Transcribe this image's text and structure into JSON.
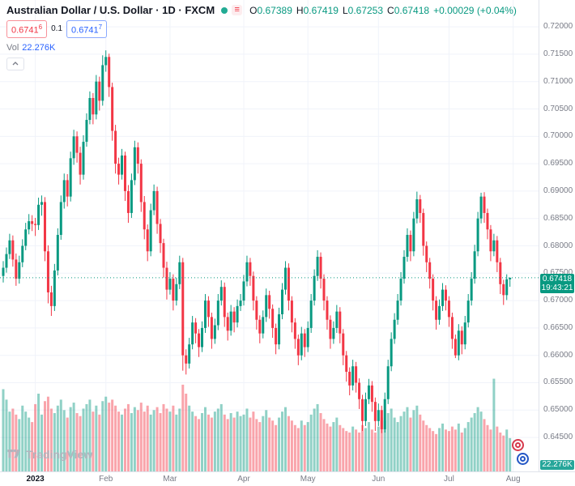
{
  "header": {
    "title": "Australian Dollar / U.S. Dollar · 1D · FXCM",
    "ohlc": {
      "o_label": "O",
      "o": "0.67389",
      "h_label": "H",
      "h": "0.67419",
      "l_label": "L",
      "l": "0.67253",
      "c_label": "C",
      "c": "0.67418",
      "change": "+0.00029 (+0.04%)"
    },
    "bid": {
      "main": "0.6741",
      "sup": "6"
    },
    "spread": "0.1",
    "ask": {
      "main": "0.6741",
      "sup": "7"
    },
    "vol_label": "Vol",
    "vol_value": "22.276K"
  },
  "icons": {
    "menu_glyph": "≡"
  },
  "axis": {
    "last_price": "0.67418",
    "countdown": "19:43:21",
    "volume_badge": "22.276K"
  },
  "footer": {
    "logo_text": "TradingView"
  },
  "colors": {
    "up": "#089981",
    "down": "#f23645",
    "vol_up": "rgba(8,153,129,0.45)",
    "vol_down": "rgba(242,54,69,0.45)",
    "grid": "#f0f3fa",
    "axis_text": "#787b86",
    "last_line": "#089981"
  },
  "chart_data": {
    "type": "candlestick",
    "symbol": "Australian Dollar / U.S. Dollar",
    "interval": "1D",
    "exchange": "FXCM",
    "last_close": 0.67418,
    "ylim": [
      0.6388,
      0.7249
    ],
    "price_ticks": [
      0.72,
      0.715,
      0.71,
      0.705,
      0.7,
      0.695,
      0.69,
      0.685,
      0.68,
      0.675,
      0.67,
      0.665,
      0.66,
      0.655,
      0.65,
      0.645
    ],
    "x_axis": {
      "offset": 4,
      "step": 3.96,
      "candle_width": 3,
      "labels": [
        {
          "label": "2023",
          "index": 10,
          "year": true
        },
        {
          "label": "Feb",
          "index": 32
        },
        {
          "label": "Mar",
          "index": 52
        },
        {
          "label": "Apr",
          "index": 75
        },
        {
          "label": "May",
          "index": 95
        },
        {
          "label": "Jun",
          "index": 117
        },
        {
          "label": "Jul",
          "index": 139
        },
        {
          "label": "Aug",
          "index": 159
        }
      ]
    },
    "volume_axis": {
      "max": 65,
      "pane_height": 120,
      "unit": "K"
    },
    "candles": [
      [
        0.6745,
        0.6772,
        0.6733,
        0.676
      ],
      [
        0.676,
        0.6797,
        0.6751,
        0.6785
      ],
      [
        0.6785,
        0.6822,
        0.6776,
        0.681
      ],
      [
        0.681,
        0.6819,
        0.6762,
        0.6775
      ],
      [
        0.6775,
        0.6786,
        0.6727,
        0.674
      ],
      [
        0.674,
        0.6782,
        0.6731,
        0.677
      ],
      [
        0.677,
        0.6812,
        0.6761,
        0.68
      ],
      [
        0.68,
        0.6842,
        0.6792,
        0.683
      ],
      [
        0.683,
        0.6858,
        0.6821,
        0.6845
      ],
      [
        0.6845,
        0.6856,
        0.6827,
        0.684
      ],
      [
        0.684,
        0.6851,
        0.6818,
        0.6838
      ],
      [
        0.6838,
        0.6888,
        0.6829,
        0.6875
      ],
      [
        0.6875,
        0.6892,
        0.6855,
        0.688
      ],
      [
        0.688,
        0.6889,
        0.6772,
        0.679
      ],
      [
        0.679,
        0.6801,
        0.6695,
        0.6715
      ],
      [
        0.6715,
        0.6727,
        0.6672,
        0.669
      ],
      [
        0.669,
        0.6767,
        0.6681,
        0.6755
      ],
      [
        0.6755,
        0.6832,
        0.6746,
        0.682
      ],
      [
        0.682,
        0.6892,
        0.6811,
        0.688
      ],
      [
        0.688,
        0.6932,
        0.6868,
        0.692
      ],
      [
        0.692,
        0.6931,
        0.6872,
        0.689
      ],
      [
        0.689,
        0.6972,
        0.6881,
        0.696
      ],
      [
        0.696,
        0.7012,
        0.6948,
        0.7
      ],
      [
        0.7,
        0.7009,
        0.6952,
        0.697
      ],
      [
        0.697,
        0.6981,
        0.6912,
        0.693
      ],
      [
        0.693,
        0.7002,
        0.6921,
        0.699
      ],
      [
        0.699,
        0.7042,
        0.6981,
        0.703
      ],
      [
        0.703,
        0.7082,
        0.7022,
        0.707
      ],
      [
        0.707,
        0.7079,
        0.7022,
        0.704
      ],
      [
        0.704,
        0.7112,
        0.7031,
        0.71
      ],
      [
        0.71,
        0.7109,
        0.7047,
        0.7065
      ],
      [
        0.7065,
        0.7148,
        0.7056,
        0.713
      ],
      [
        0.713,
        0.7157,
        0.7118,
        0.7145
      ],
      [
        0.7145,
        0.7151,
        0.7072,
        0.709
      ],
      [
        0.709,
        0.7098,
        0.6992,
        0.701
      ],
      [
        0.701,
        0.7021,
        0.6932,
        0.695
      ],
      [
        0.695,
        0.6961,
        0.6912,
        0.693
      ],
      [
        0.693,
        0.6977,
        0.6921,
        0.6965
      ],
      [
        0.6965,
        0.6972,
        0.6882,
        0.69
      ],
      [
        0.69,
        0.6911,
        0.6842,
        0.686
      ],
      [
        0.686,
        0.6932,
        0.6851,
        0.692
      ],
      [
        0.692,
        0.6992,
        0.6911,
        0.698
      ],
      [
        0.698,
        0.6989,
        0.6932,
        0.695
      ],
      [
        0.695,
        0.6958,
        0.6862,
        0.688
      ],
      [
        0.688,
        0.6891,
        0.6812,
        0.683
      ],
      [
        0.683,
        0.6839,
        0.6772,
        0.679
      ],
      [
        0.679,
        0.6877,
        0.6781,
        0.6865
      ],
      [
        0.6865,
        0.6912,
        0.6856,
        0.69
      ],
      [
        0.69,
        0.6908,
        0.6822,
        0.684
      ],
      [
        0.684,
        0.6849,
        0.6787,
        0.6805
      ],
      [
        0.6805,
        0.6813,
        0.6742,
        0.676
      ],
      [
        0.676,
        0.6771,
        0.6702,
        0.672
      ],
      [
        0.672,
        0.6752,
        0.6711,
        0.674
      ],
      [
        0.674,
        0.6748,
        0.6682,
        0.67
      ],
      [
        0.67,
        0.6742,
        0.6691,
        0.673
      ],
      [
        0.673,
        0.6782,
        0.6721,
        0.677
      ],
      [
        0.677,
        0.6778,
        0.6572,
        0.66
      ],
      [
        0.66,
        0.6611,
        0.6565,
        0.6585
      ],
      [
        0.6585,
        0.6632,
        0.6576,
        0.662
      ],
      [
        0.662,
        0.6672,
        0.6611,
        0.666
      ],
      [
        0.666,
        0.6668,
        0.6622,
        0.664
      ],
      [
        0.664,
        0.6648,
        0.6597,
        0.6615
      ],
      [
        0.6615,
        0.6662,
        0.6606,
        0.665
      ],
      [
        0.665,
        0.6712,
        0.6641,
        0.67
      ],
      [
        0.67,
        0.6708,
        0.6652,
        0.667
      ],
      [
        0.667,
        0.6678,
        0.6612,
        0.663
      ],
      [
        0.663,
        0.6667,
        0.6621,
        0.6655
      ],
      [
        0.6655,
        0.6712,
        0.6646,
        0.67
      ],
      [
        0.67,
        0.6737,
        0.6691,
        0.6725
      ],
      [
        0.6725,
        0.6733,
        0.6652,
        0.667
      ],
      [
        0.667,
        0.6678,
        0.6627,
        0.6645
      ],
      [
        0.6645,
        0.6692,
        0.6636,
        0.668
      ],
      [
        0.668,
        0.6688,
        0.6642,
        0.666
      ],
      [
        0.666,
        0.6702,
        0.6651,
        0.669
      ],
      [
        0.669,
        0.6712,
        0.6681,
        0.67
      ],
      [
        0.67,
        0.6747,
        0.6691,
        0.6735
      ],
      [
        0.6735,
        0.6782,
        0.6726,
        0.677
      ],
      [
        0.677,
        0.6778,
        0.6727,
        0.6745
      ],
      [
        0.6745,
        0.6753,
        0.6682,
        0.67
      ],
      [
        0.67,
        0.6708,
        0.6647,
        0.6665
      ],
      [
        0.6665,
        0.6673,
        0.6622,
        0.664
      ],
      [
        0.664,
        0.6682,
        0.6631,
        0.667
      ],
      [
        0.667,
        0.6722,
        0.6661,
        0.671
      ],
      [
        0.671,
        0.6718,
        0.6667,
        0.6685
      ],
      [
        0.6685,
        0.6693,
        0.6632,
        0.665
      ],
      [
        0.665,
        0.6658,
        0.6602,
        0.662
      ],
      [
        0.662,
        0.6687,
        0.6611,
        0.6675
      ],
      [
        0.6675,
        0.6732,
        0.6666,
        0.672
      ],
      [
        0.672,
        0.6772,
        0.6711,
        0.676
      ],
      [
        0.676,
        0.6768,
        0.6682,
        0.67
      ],
      [
        0.67,
        0.6708,
        0.6642,
        0.666
      ],
      [
        0.666,
        0.6668,
        0.6612,
        0.663
      ],
      [
        0.663,
        0.6638,
        0.6582,
        0.66
      ],
      [
        0.66,
        0.6652,
        0.6591,
        0.664
      ],
      [
        0.664,
        0.6648,
        0.6597,
        0.6615
      ],
      [
        0.6615,
        0.6662,
        0.6606,
        0.665
      ],
      [
        0.665,
        0.6712,
        0.6641,
        0.67
      ],
      [
        0.67,
        0.6757,
        0.6691,
        0.6745
      ],
      [
        0.6745,
        0.6792,
        0.6736,
        0.678
      ],
      [
        0.678,
        0.6788,
        0.6722,
        0.674
      ],
      [
        0.674,
        0.6748,
        0.6682,
        0.67
      ],
      [
        0.67,
        0.6708,
        0.6647,
        0.6665
      ],
      [
        0.6665,
        0.6673,
        0.6612,
        0.663
      ],
      [
        0.663,
        0.6662,
        0.6621,
        0.665
      ],
      [
        0.665,
        0.6692,
        0.6641,
        0.668
      ],
      [
        0.668,
        0.6688,
        0.6622,
        0.664
      ],
      [
        0.664,
        0.6648,
        0.6582,
        0.66
      ],
      [
        0.66,
        0.6608,
        0.6552,
        0.657
      ],
      [
        0.657,
        0.6578,
        0.6527,
        0.6545
      ],
      [
        0.6545,
        0.6592,
        0.6536,
        0.658
      ],
      [
        0.658,
        0.6588,
        0.6532,
        0.655
      ],
      [
        0.655,
        0.6558,
        0.6502,
        0.652
      ],
      [
        0.652,
        0.6528,
        0.6462,
        0.648
      ],
      [
        0.648,
        0.6532,
        0.6471,
        0.652
      ],
      [
        0.652,
        0.6557,
        0.6511,
        0.6545
      ],
      [
        0.6545,
        0.6553,
        0.6497,
        0.6515
      ],
      [
        0.6515,
        0.6523,
        0.6462,
        0.648
      ],
      [
        0.648,
        0.6512,
        0.6471,
        0.65
      ],
      [
        0.65,
        0.6508,
        0.6458,
        0.6465
      ],
      [
        0.6465,
        0.6532,
        0.6459,
        0.652
      ],
      [
        0.652,
        0.6592,
        0.6511,
        0.658
      ],
      [
        0.658,
        0.6642,
        0.6571,
        0.663
      ],
      [
        0.663,
        0.6677,
        0.6621,
        0.6665
      ],
      [
        0.6665,
        0.6712,
        0.6656,
        0.67
      ],
      [
        0.67,
        0.6752,
        0.6691,
        0.674
      ],
      [
        0.674,
        0.6792,
        0.6731,
        0.678
      ],
      [
        0.678,
        0.6832,
        0.6771,
        0.682
      ],
      [
        0.682,
        0.6828,
        0.6772,
        0.679
      ],
      [
        0.679,
        0.6862,
        0.6781,
        0.685
      ],
      [
        0.685,
        0.6899,
        0.6841,
        0.6885
      ],
      [
        0.6885,
        0.6893,
        0.6842,
        0.686
      ],
      [
        0.686,
        0.6868,
        0.6782,
        0.68
      ],
      [
        0.68,
        0.6808,
        0.6752,
        0.677
      ],
      [
        0.677,
        0.6778,
        0.6722,
        0.674
      ],
      [
        0.674,
        0.6748,
        0.6682,
        0.67
      ],
      [
        0.67,
        0.6708,
        0.6647,
        0.6665
      ],
      [
        0.6665,
        0.6702,
        0.6656,
        0.669
      ],
      [
        0.669,
        0.6732,
        0.6681,
        0.672
      ],
      [
        0.672,
        0.6728,
        0.6682,
        0.67
      ],
      [
        0.67,
        0.6708,
        0.6652,
        0.667
      ],
      [
        0.667,
        0.6678,
        0.6612,
        0.663
      ],
      [
        0.663,
        0.6638,
        0.6595,
        0.66
      ],
      [
        0.66,
        0.6657,
        0.6591,
        0.6645
      ],
      [
        0.6645,
        0.6653,
        0.6602,
        0.662
      ],
      [
        0.662,
        0.6672,
        0.6611,
        0.666
      ],
      [
        0.666,
        0.6712,
        0.6651,
        0.67
      ],
      [
        0.67,
        0.6752,
        0.6691,
        0.674
      ],
      [
        0.674,
        0.6802,
        0.6731,
        0.679
      ],
      [
        0.679,
        0.6862,
        0.6781,
        0.685
      ],
      [
        0.685,
        0.6897,
        0.6841,
        0.689
      ],
      [
        0.689,
        0.6898,
        0.6842,
        0.686
      ],
      [
        0.686,
        0.6868,
        0.6812,
        0.683
      ],
      [
        0.683,
        0.6838,
        0.6772,
        0.679
      ],
      [
        0.679,
        0.6822,
        0.6781,
        0.681
      ],
      [
        0.681,
        0.6818,
        0.6752,
        0.677
      ],
      [
        0.677,
        0.6778,
        0.6712,
        0.673
      ],
      [
        0.673,
        0.6738,
        0.6692,
        0.671
      ],
      [
        0.671,
        0.6748,
        0.6701,
        0.6739
      ],
      [
        0.67389,
        0.67419,
        0.67253,
        0.67418
      ]
    ],
    "volumes": [
      55,
      48,
      40,
      42,
      38,
      35,
      44,
      40,
      36,
      33,
      45,
      52,
      38,
      47,
      50,
      42,
      39,
      44,
      48,
      41,
      36,
      43,
      46,
      39,
      37,
      42,
      45,
      48,
      40,
      44,
      38,
      47,
      50,
      46,
      48,
      44,
      40,
      38,
      42,
      45,
      39,
      43,
      41,
      46,
      40,
      44,
      38,
      41,
      43,
      39,
      45,
      42,
      40,
      44,
      38,
      42,
      58,
      52,
      44,
      40,
      37,
      35,
      39,
      43,
      38,
      36,
      40,
      42,
      45,
      38,
      35,
      39,
      36,
      40,
      37,
      38,
      42,
      36,
      40,
      35,
      33,
      37,
      41,
      36,
      34,
      31,
      36,
      40,
      43,
      37,
      34,
      31,
      29,
      34,
      31,
      33,
      38,
      42,
      45,
      39,
      35,
      32,
      30,
      33,
      36,
      31,
      29,
      27,
      26,
      30,
      28,
      26,
      31,
      29,
      33,
      28,
      26,
      30,
      36,
      34,
      39,
      42,
      36,
      33,
      37,
      40,
      43,
      36,
      41,
      44,
      38,
      34,
      31,
      29,
      27,
      25,
      29,
      32,
      28,
      27,
      30,
      28,
      32,
      26,
      29,
      33,
      36,
      39,
      43,
      40,
      35,
      31,
      28,
      62,
      30,
      26,
      24,
      28,
      22.276
    ]
  }
}
